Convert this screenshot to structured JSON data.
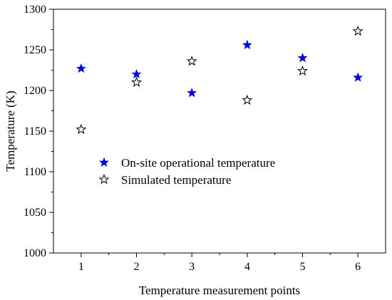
{
  "chart_data": {
    "type": "scatter",
    "xlabel": "Temperature measurement points",
    "ylabel": "Temperature (K)",
    "xlim": [
      0.5,
      6.5
    ],
    "ylim": [
      1000,
      1300
    ],
    "x_ticks": [
      1,
      2,
      3,
      4,
      5,
      6
    ],
    "y_ticks": [
      1000,
      1050,
      1100,
      1150,
      1200,
      1250,
      1300
    ],
    "grid": false,
    "legend_position": "center-left",
    "series": [
      {
        "name": "On-site operational temperature",
        "marker": "filled-star",
        "color": "#0000ff",
        "x": [
          1,
          2,
          3,
          4,
          5,
          6
        ],
        "y": [
          1227,
          1220,
          1197,
          1256,
          1240,
          1216
        ]
      },
      {
        "name": "Simulated temperature",
        "marker": "hollow-star",
        "color": "#000000",
        "x": [
          1,
          2,
          3,
          4,
          5,
          6
        ],
        "y": [
          1152,
          1210,
          1236,
          1188,
          1224,
          1273
        ]
      }
    ]
  }
}
